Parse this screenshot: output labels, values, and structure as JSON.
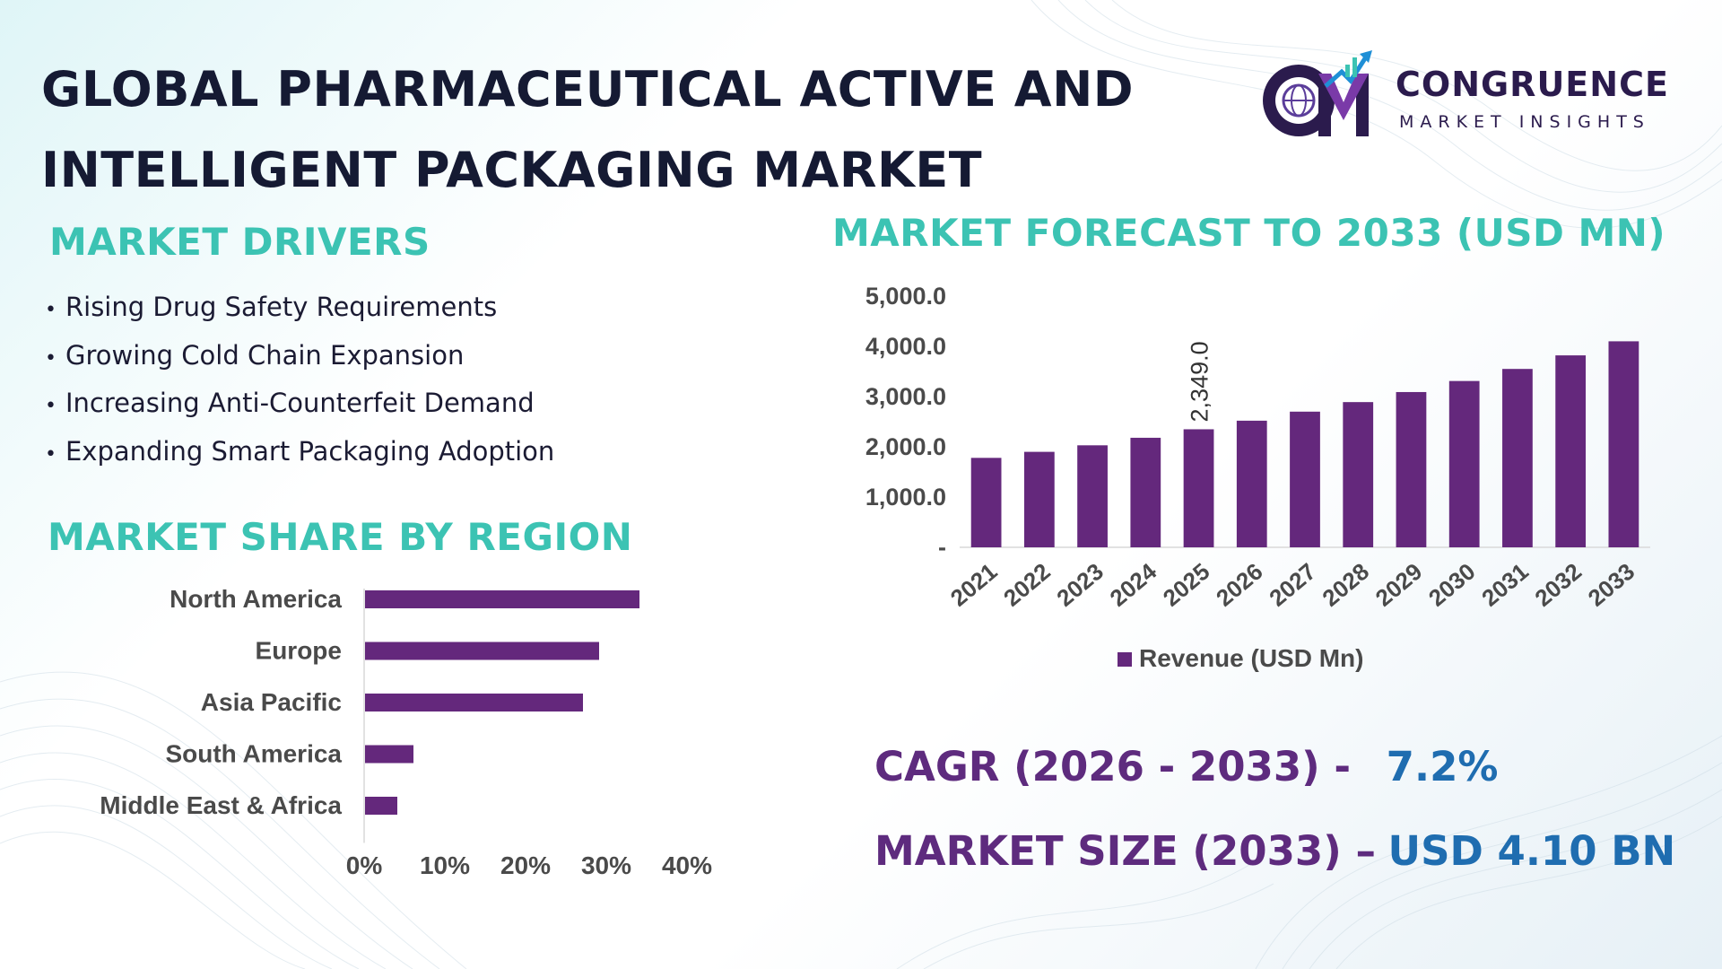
{
  "title": {
    "line1": "GLOBAL PHARMACEUTICAL ACTIVE AND",
    "line2": "INTELLIGENT PACKAGING MARKET"
  },
  "logo": {
    "name": "CONGRUENCE",
    "tagline": "MARKET INSIGHTS"
  },
  "drivers": {
    "heading": "MARKET DRIVERS",
    "items": [
      "Rising Drug Safety Requirements",
      "Growing Cold Chain Expansion",
      "Increasing Anti-Counterfeit Demand",
      "Expanding Smart Packaging Adoption"
    ]
  },
  "stats": {
    "cagr_label": "CAGR (2026 - 2033) -",
    "cagr_value": "7.2%",
    "size_label": "MARKET SIZE (2033) –",
    "size_value": "USD 4.10 BN"
  },
  "colors": {
    "bar": "#64287c",
    "heading": "#3cc3b3",
    "title": "#151a33",
    "stat_label": "#5e2b7e",
    "stat_value": "#1f6db0"
  },
  "chart_data": [
    {
      "type": "bar",
      "title": "MARKET FORECAST TO 2033 (USD MN)",
      "categories": [
        "2021",
        "2022",
        "2023",
        "2024",
        "2025",
        "2026",
        "2027",
        "2028",
        "2029",
        "2030",
        "2031",
        "2032",
        "2033"
      ],
      "series": [
        {
          "name": "Revenue (USD Mn)",
          "values": [
            1780,
            1900,
            2030,
            2180,
            2349,
            2520,
            2700,
            2890,
            3090,
            3310,
            3550,
            3820,
            4100
          ]
        }
      ],
      "data_labels": [
        {
          "category": "2025",
          "text": "2,349.0"
        }
      ],
      "y_ticks": [
        "-",
        "1,000.0",
        "2,000.0",
        "3,000.0",
        "4,000.0",
        "5,000.0"
      ],
      "ylim": [
        0,
        5000
      ],
      "legend": "bottom",
      "grid": false
    },
    {
      "type": "bar",
      "orientation": "horizontal",
      "title": "MARKET SHARE BY REGION",
      "categories": [
        "North America",
        "Europe",
        "Asia Pacific",
        "South America",
        "Middle East & Africa"
      ],
      "values": [
        34,
        29,
        27,
        6,
        4
      ],
      "x_ticks": [
        "0%",
        "10%",
        "20%",
        "30%",
        "40%"
      ],
      "xlim": [
        0,
        40
      ],
      "grid": false
    }
  ]
}
